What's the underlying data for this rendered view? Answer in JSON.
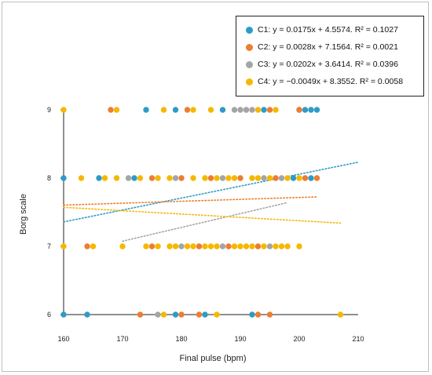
{
  "chart_data": {
    "type": "scatter",
    "xlabel": "Final pulse (bpm)",
    "ylabel": "Borg scale",
    "xlim": [
      160,
      210
    ],
    "ylim": [
      6,
      9
    ],
    "xticks": [
      "160",
      "170",
      "180",
      "190",
      "200",
      "210"
    ],
    "yticks": [
      "6",
      "7",
      "8",
      "9"
    ],
    "legend_position": "top-right",
    "series": [
      {
        "name": "C1",
        "color": "#2e9bc6",
        "equation": "C1: y = 0.0175x + 4.5574. R² = 0.1027",
        "trend": {
          "slope": 0.0175,
          "intercept": 4.5574,
          "x_range": [
            160,
            210
          ]
        },
        "points": [
          {
            "x": 160,
            "y": 8
          },
          {
            "x": 166,
            "y": 8
          },
          {
            "x": 172,
            "y": 8
          },
          {
            "x": 199,
            "y": 8
          },
          {
            "x": 202,
            "y": 8
          },
          {
            "x": 174,
            "y": 9
          },
          {
            "x": 179,
            "y": 9
          },
          {
            "x": 187,
            "y": 9
          },
          {
            "x": 194,
            "y": 9
          },
          {
            "x": 200,
            "y": 9
          },
          {
            "x": 201,
            "y": 9
          },
          {
            "x": 202,
            "y": 9
          },
          {
            "x": 203,
            "y": 9
          },
          {
            "x": 160,
            "y": 6
          },
          {
            "x": 164,
            "y": 6
          },
          {
            "x": 179,
            "y": 6
          },
          {
            "x": 184,
            "y": 6
          },
          {
            "x": 192,
            "y": 6
          }
        ]
      },
      {
        "name": "C2",
        "color": "#ed7d31",
        "equation": "C2: y = 0.0028x + 7.1564. R² = 0.0021",
        "trend": {
          "slope": 0.0028,
          "intercept": 7.1564,
          "x_range": [
            160,
            203
          ]
        },
        "points": [
          {
            "x": 168,
            "y": 9
          },
          {
            "x": 181,
            "y": 9
          },
          {
            "x": 191,
            "y": 9
          },
          {
            "x": 195,
            "y": 9
          },
          {
            "x": 200,
            "y": 9
          },
          {
            "x": 175,
            "y": 8
          },
          {
            "x": 180,
            "y": 8
          },
          {
            "x": 185,
            "y": 8
          },
          {
            "x": 190,
            "y": 8
          },
          {
            "x": 196,
            "y": 8
          },
          {
            "x": 201,
            "y": 8
          },
          {
            "x": 203,
            "y": 8
          },
          {
            "x": 164,
            "y": 7
          },
          {
            "x": 175,
            "y": 7
          },
          {
            "x": 183,
            "y": 7
          },
          {
            "x": 188,
            "y": 7
          },
          {
            "x": 193,
            "y": 7
          },
          {
            "x": 173,
            "y": 6
          },
          {
            "x": 180,
            "y": 6
          },
          {
            "x": 183,
            "y": 6
          },
          {
            "x": 193,
            "y": 6
          },
          {
            "x": 195,
            "y": 6
          }
        ]
      },
      {
        "name": "C3",
        "color": "#a5a5a5",
        "equation": "C3: y = 0.0202x + 3.6414. R² = 0.0396",
        "trend": {
          "slope": 0.0202,
          "intercept": 3.6414,
          "x_range": [
            170,
            198
          ]
        },
        "points": [
          {
            "x": 189,
            "y": 9
          },
          {
            "x": 190,
            "y": 9
          },
          {
            "x": 191,
            "y": 9
          },
          {
            "x": 192,
            "y": 9
          },
          {
            "x": 171,
            "y": 8
          },
          {
            "x": 179,
            "y": 8
          },
          {
            "x": 187,
            "y": 8
          },
          {
            "x": 194,
            "y": 8
          },
          {
            "x": 197,
            "y": 8
          },
          {
            "x": 180,
            "y": 7
          },
          {
            "x": 187,
            "y": 7
          },
          {
            "x": 195,
            "y": 7
          },
          {
            "x": 176,
            "y": 6
          }
        ]
      },
      {
        "name": "C4",
        "color": "#f5b800",
        "equation": "C4: y = −0.0049x + 8.3552. R² = 0.0058",
        "trend": {
          "slope": -0.0049,
          "intercept": 8.3552,
          "x_range": [
            160,
            207
          ]
        },
        "points": [
          {
            "x": 160,
            "y": 9
          },
          {
            "x": 169,
            "y": 9
          },
          {
            "x": 177,
            "y": 9
          },
          {
            "x": 182,
            "y": 9
          },
          {
            "x": 185,
            "y": 9
          },
          {
            "x": 193,
            "y": 9
          },
          {
            "x": 196,
            "y": 9
          },
          {
            "x": 163,
            "y": 8
          },
          {
            "x": 167,
            "y": 8
          },
          {
            "x": 169,
            "y": 8
          },
          {
            "x": 173,
            "y": 8
          },
          {
            "x": 176,
            "y": 8
          },
          {
            "x": 178,
            "y": 8
          },
          {
            "x": 182,
            "y": 8
          },
          {
            "x": 184,
            "y": 8
          },
          {
            "x": 186,
            "y": 8
          },
          {
            "x": 188,
            "y": 8
          },
          {
            "x": 189,
            "y": 8
          },
          {
            "x": 192,
            "y": 8
          },
          {
            "x": 193,
            "y": 8
          },
          {
            "x": 195,
            "y": 8
          },
          {
            "x": 198,
            "y": 8
          },
          {
            "x": 200,
            "y": 8
          },
          {
            "x": 160,
            "y": 7
          },
          {
            "x": 165,
            "y": 7
          },
          {
            "x": 170,
            "y": 7
          },
          {
            "x": 174,
            "y": 7
          },
          {
            "x": 176,
            "y": 7
          },
          {
            "x": 178,
            "y": 7
          },
          {
            "x": 179,
            "y": 7
          },
          {
            "x": 181,
            "y": 7
          },
          {
            "x": 182,
            "y": 7
          },
          {
            "x": 184,
            "y": 7
          },
          {
            "x": 185,
            "y": 7
          },
          {
            "x": 186,
            "y": 7
          },
          {
            "x": 189,
            "y": 7
          },
          {
            "x": 190,
            "y": 7
          },
          {
            "x": 191,
            "y": 7
          },
          {
            "x": 192,
            "y": 7
          },
          {
            "x": 194,
            "y": 7
          },
          {
            "x": 196,
            "y": 7
          },
          {
            "x": 197,
            "y": 7
          },
          {
            "x": 198,
            "y": 7
          },
          {
            "x": 200,
            "y": 7
          },
          {
            "x": 177,
            "y": 6
          },
          {
            "x": 186,
            "y": 6
          },
          {
            "x": 207,
            "y": 6
          }
        ]
      }
    ]
  }
}
